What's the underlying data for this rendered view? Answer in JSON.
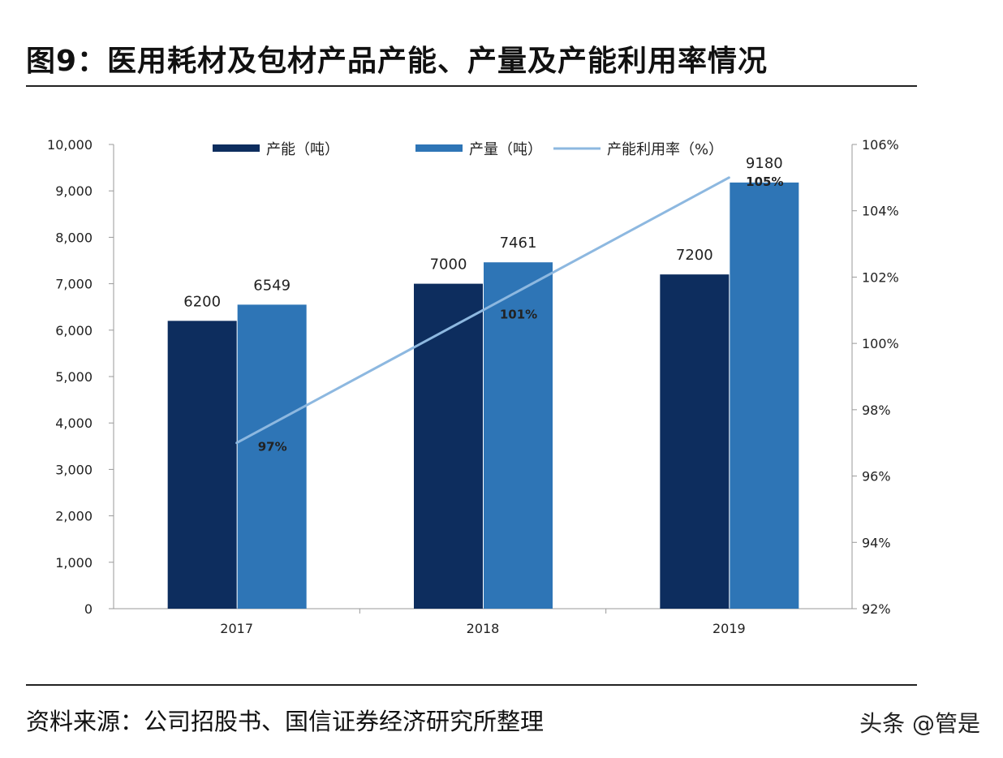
{
  "title": "图9：医用耗材及包材产品产能、产量及产能利用率情况",
  "source": "资料来源：公司招股书、国信证券经济研究所整理",
  "watermark": "头条 @管是",
  "chart_data": {
    "type": "bar+line",
    "categories": [
      "2017",
      "2018",
      "2019"
    ],
    "series": [
      {
        "name": "产能（吨）",
        "type": "bar",
        "axis": "left",
        "color": "#0d2d5e",
        "values": [
          6200,
          7000,
          7200
        ]
      },
      {
        "name": "产量（吨）",
        "type": "bar",
        "axis": "left",
        "color": "#2e75b6",
        "values": [
          6549,
          7461,
          9180
        ]
      },
      {
        "name": "产能利用率（%）",
        "type": "line",
        "axis": "right",
        "color": "#8db8e0",
        "values": [
          97,
          101,
          105
        ],
        "labels": [
          "97%",
          "101%",
          "105%"
        ]
      }
    ],
    "ylim": [
      0,
      10000
    ],
    "yticks": [
      "0",
      "1,000",
      "2,000",
      "3,000",
      "4,000",
      "5,000",
      "6,000",
      "7,000",
      "8,000",
      "9,000",
      "10,000"
    ],
    "y2lim": [
      92,
      106
    ],
    "y2ticks": [
      "92%",
      "94%",
      "96%",
      "98%",
      "100%",
      "102%",
      "104%",
      "106%"
    ],
    "legend": "top",
    "grid": false
  }
}
